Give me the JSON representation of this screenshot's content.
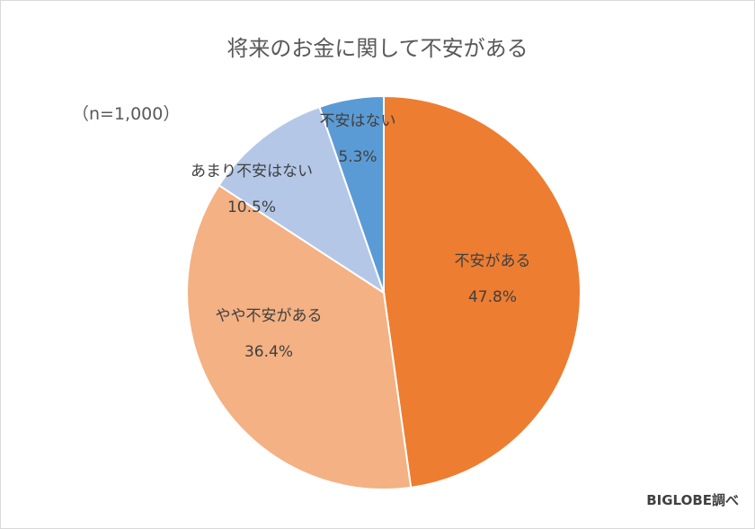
{
  "title": "将来のお金に関して不安がある",
  "sample_note": "（n=1,000）",
  "source_note": "BIGLOBE調べ",
  "chart_data": {
    "type": "pie",
    "title": "将来のお金に関して不安がある",
    "slices": [
      {
        "label": "不安がある",
        "value": 47.8,
        "display": "47.8%",
        "color": "#ed7d31"
      },
      {
        "label": "やや不安がある",
        "value": 36.4,
        "display": "36.4%",
        "color": "#f4b183"
      },
      {
        "label": "あまり不安はない",
        "value": 10.5,
        "display": "10.5%",
        "color": "#b4c7e7"
      },
      {
        "label": "不安はない",
        "value": 5.3,
        "display": "5.3%",
        "color": "#5b9bd5"
      }
    ]
  }
}
